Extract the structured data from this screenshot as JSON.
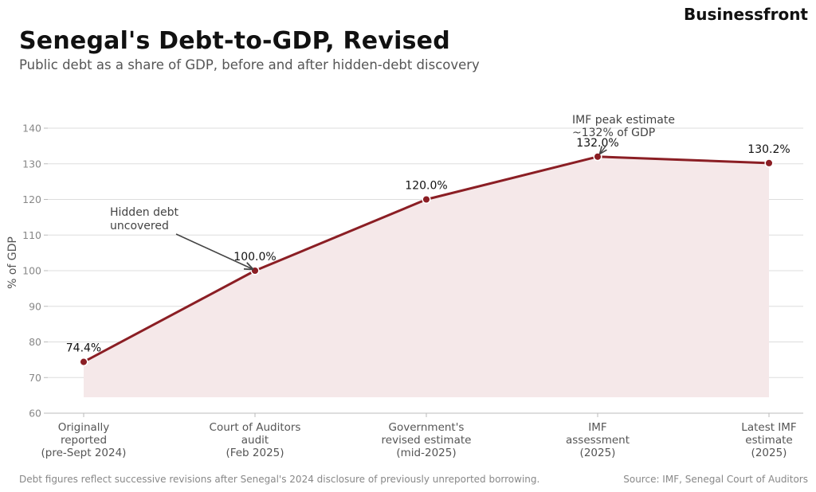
{
  "brand": "Businessfront",
  "title": "Senegal's Debt-to-GDP, Revised",
  "subtitle": "Public debt as a share of GDP, before and after hidden-debt discovery",
  "footer": {
    "note": "Debt figures reflect successive revisions after Senegal's 2024 disclosure of previously unreported borrowing.",
    "source": "Source: IMF, Senegal Court of Auditors"
  },
  "colors": {
    "line": "#8b1e24",
    "fill": "#f5e8e9",
    "grid": "#dddddd",
    "axis": "#bbbbbb",
    "tick_label": "#888888",
    "category_label": "#555555",
    "annotation": "#444444"
  },
  "chart_data": {
    "type": "line",
    "ylabel": "% of GDP",
    "xlabel": "",
    "ylim": [
      60,
      140
    ],
    "yticks": [
      60,
      70,
      80,
      90,
      100,
      110,
      120,
      130,
      140
    ],
    "grid": true,
    "categories": [
      [
        "Originally",
        "reported",
        "(pre-Sept 2024)"
      ],
      [
        "Court of Auditors",
        "audit",
        "(Feb 2025)"
      ],
      [
        "Government's",
        "revised estimate",
        "(mid-2025)"
      ],
      [
        "IMF",
        "assessment",
        "(2025)"
      ],
      [
        "Latest IMF",
        "estimate",
        "(2025)"
      ]
    ],
    "values": [
      74.4,
      100.0,
      120.0,
      132.0,
      130.2
    ],
    "data_labels": [
      "74.4%",
      "100.0%",
      "120.0%",
      "132.0%",
      "130.2%"
    ],
    "annotations": [
      {
        "point_index": 1,
        "lines": [
          "Hidden debt",
          "uncovered"
        ]
      },
      {
        "point_index": 3,
        "lines": [
          "IMF peak estimate",
          "~132% of GDP"
        ]
      }
    ]
  }
}
